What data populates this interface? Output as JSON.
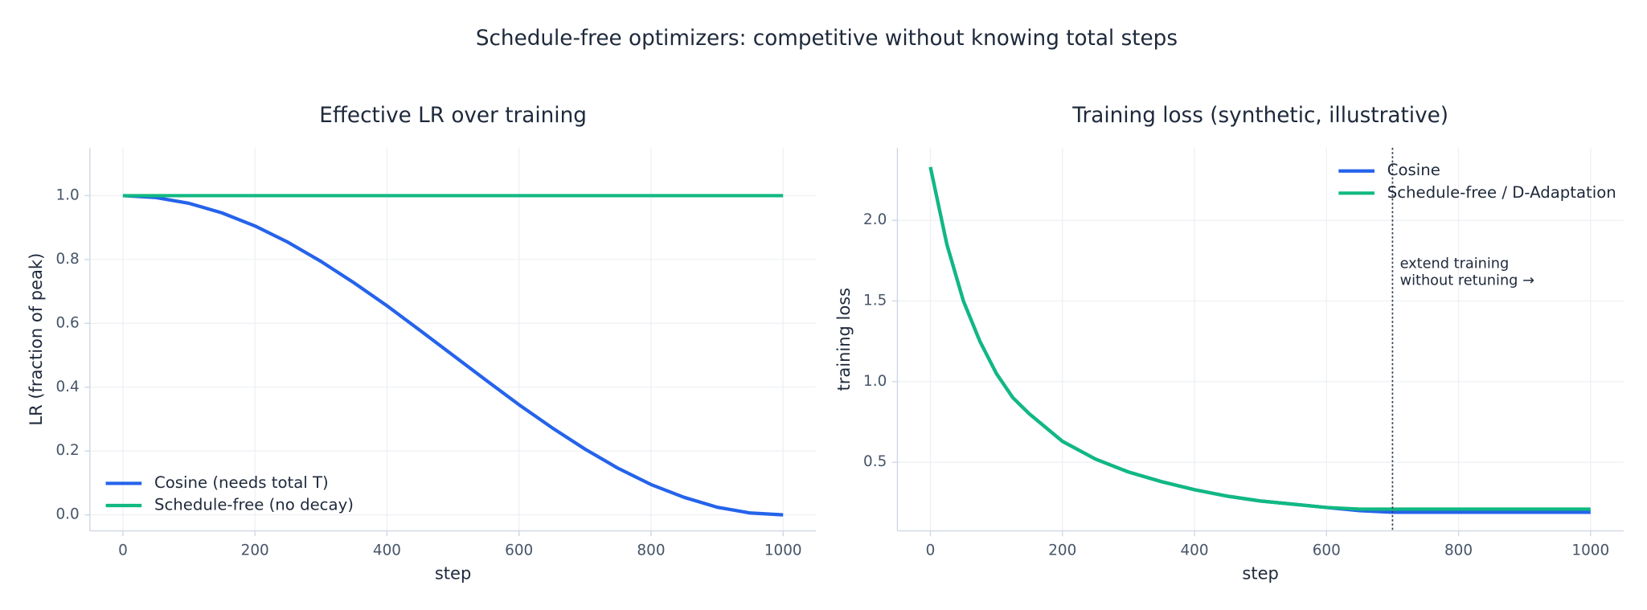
{
  "title": "Schedule-free optimizers: competitive without knowing total steps",
  "chart_data": [
    {
      "type": "line",
      "title": "Effective LR over training",
      "x_label": "step",
      "y_label": "LR (fraction of peak)",
      "x": [
        0,
        50,
        100,
        150,
        200,
        250,
        300,
        350,
        400,
        450,
        500,
        550,
        600,
        650,
        700,
        750,
        800,
        850,
        900,
        950,
        1000
      ],
      "series": [
        {
          "name": "Cosine (needs total T)",
          "color": "#2563eb",
          "values": [
            1.0,
            0.994,
            0.976,
            0.946,
            0.905,
            0.854,
            0.794,
            0.727,
            0.655,
            0.578,
            0.5,
            0.422,
            0.345,
            0.273,
            0.206,
            0.146,
            0.095,
            0.055,
            0.024,
            0.006,
            0.0
          ]
        },
        {
          "name": "Schedule-free (no decay)",
          "color": "#10b981",
          "values": [
            1.0,
            1.0,
            1.0,
            1.0,
            1.0,
            1.0,
            1.0,
            1.0,
            1.0,
            1.0,
            1.0,
            1.0,
            1.0,
            1.0,
            1.0,
            1.0,
            1.0,
            1.0,
            1.0,
            1.0,
            1.0
          ]
        }
      ],
      "xlim": [
        -50,
        1050
      ],
      "ylim": [
        -0.05,
        1.15
      ],
      "xticks": [
        0,
        200,
        400,
        600,
        800,
        1000
      ],
      "yticks": [
        {
          "value": 0,
          "label": "0.0"
        },
        {
          "value": 0.2,
          "label": "0.2"
        },
        {
          "value": 0.4,
          "label": "0.4"
        },
        {
          "value": 0.6,
          "label": "0.6"
        },
        {
          "value": 0.8,
          "label": "0.8"
        },
        {
          "value": 1,
          "label": "1.0"
        }
      ],
      "grid": true,
      "legend": "lower left"
    },
    {
      "type": "line",
      "title": "Training loss (synthetic, illustrative)",
      "x_label": "step",
      "y_label": "training loss",
      "x": [
        0,
        25,
        50,
        75,
        100,
        125,
        150,
        200,
        250,
        300,
        350,
        400,
        450,
        500,
        550,
        600,
        650,
        700,
        800,
        900,
        1000
      ],
      "series": [
        {
          "name": "Cosine",
          "color": "#2563eb",
          "values": [
            2.33,
            1.85,
            1.5,
            1.25,
            1.05,
            0.9,
            0.8,
            0.63,
            0.52,
            0.44,
            0.38,
            0.33,
            0.29,
            0.26,
            0.24,
            0.22,
            0.2,
            0.19,
            0.19,
            0.19,
            0.19
          ]
        },
        {
          "name": "Schedule-free / D-Adaptation",
          "color": "#10b981",
          "values": [
            2.33,
            1.85,
            1.5,
            1.25,
            1.05,
            0.9,
            0.8,
            0.63,
            0.52,
            0.44,
            0.38,
            0.33,
            0.29,
            0.26,
            0.24,
            0.22,
            0.21,
            0.21,
            0.21,
            0.21,
            0.21
          ]
        }
      ],
      "xlim": [
        -50,
        1050
      ],
      "ylim": [
        0.075,
        2.45
      ],
      "xticks": [
        0,
        200,
        400,
        600,
        800,
        1000
      ],
      "yticks": [
        {
          "value": 0.5,
          "label": "0.5"
        },
        {
          "value": 1,
          "label": "1.0"
        },
        {
          "value": 1.5,
          "label": "1.5"
        },
        {
          "value": 2,
          "label": "2.0"
        }
      ],
      "grid": true,
      "legend": "upper right",
      "vline": 700,
      "annotation": [
        "extend training",
        "without retuning →"
      ]
    }
  ]
}
